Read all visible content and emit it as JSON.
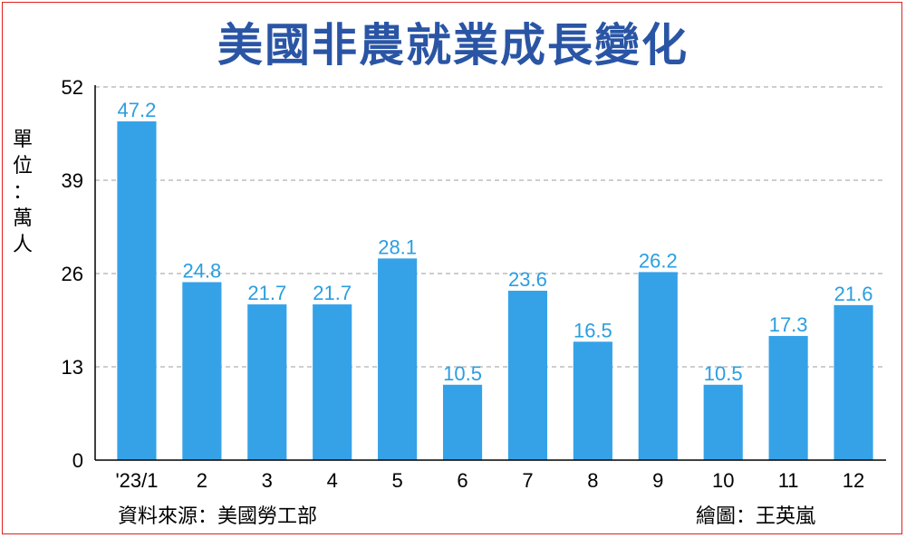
{
  "title": "美國非農就業成長變化",
  "unit_label": "單位：萬人",
  "source": "資料來源：美國勞工部",
  "credit": "繪圖：王英嵐",
  "colors": {
    "bar": "#35a2e8",
    "label": "#2b9ee0",
    "title": "#2a55a5",
    "grid": "#b0b0b0",
    "border": "#e02020"
  },
  "chart_data": {
    "type": "bar",
    "title": "美國非農就業成長變化",
    "ylabel": "單位：萬人",
    "xlabel": "",
    "categories": [
      "'23/1",
      "2",
      "3",
      "4",
      "5",
      "6",
      "7",
      "8",
      "9",
      "10",
      "11",
      "12"
    ],
    "values": [
      47.2,
      24.8,
      21.7,
      21.7,
      28.1,
      10.5,
      23.6,
      16.5,
      26.2,
      10.5,
      17.3,
      21.6
    ],
    "value_labels": [
      "47.2",
      "24.8",
      "21.7",
      "21.7",
      "28.1",
      "10.5",
      "23.6",
      "16.5",
      "26.2",
      "10.5",
      "17.3",
      "21.6"
    ],
    "ylim": [
      0,
      52
    ],
    "yticks": [
      0,
      13,
      26,
      39,
      52
    ],
    "grid": true,
    "grid_style": "dashed",
    "legend": "none"
  }
}
